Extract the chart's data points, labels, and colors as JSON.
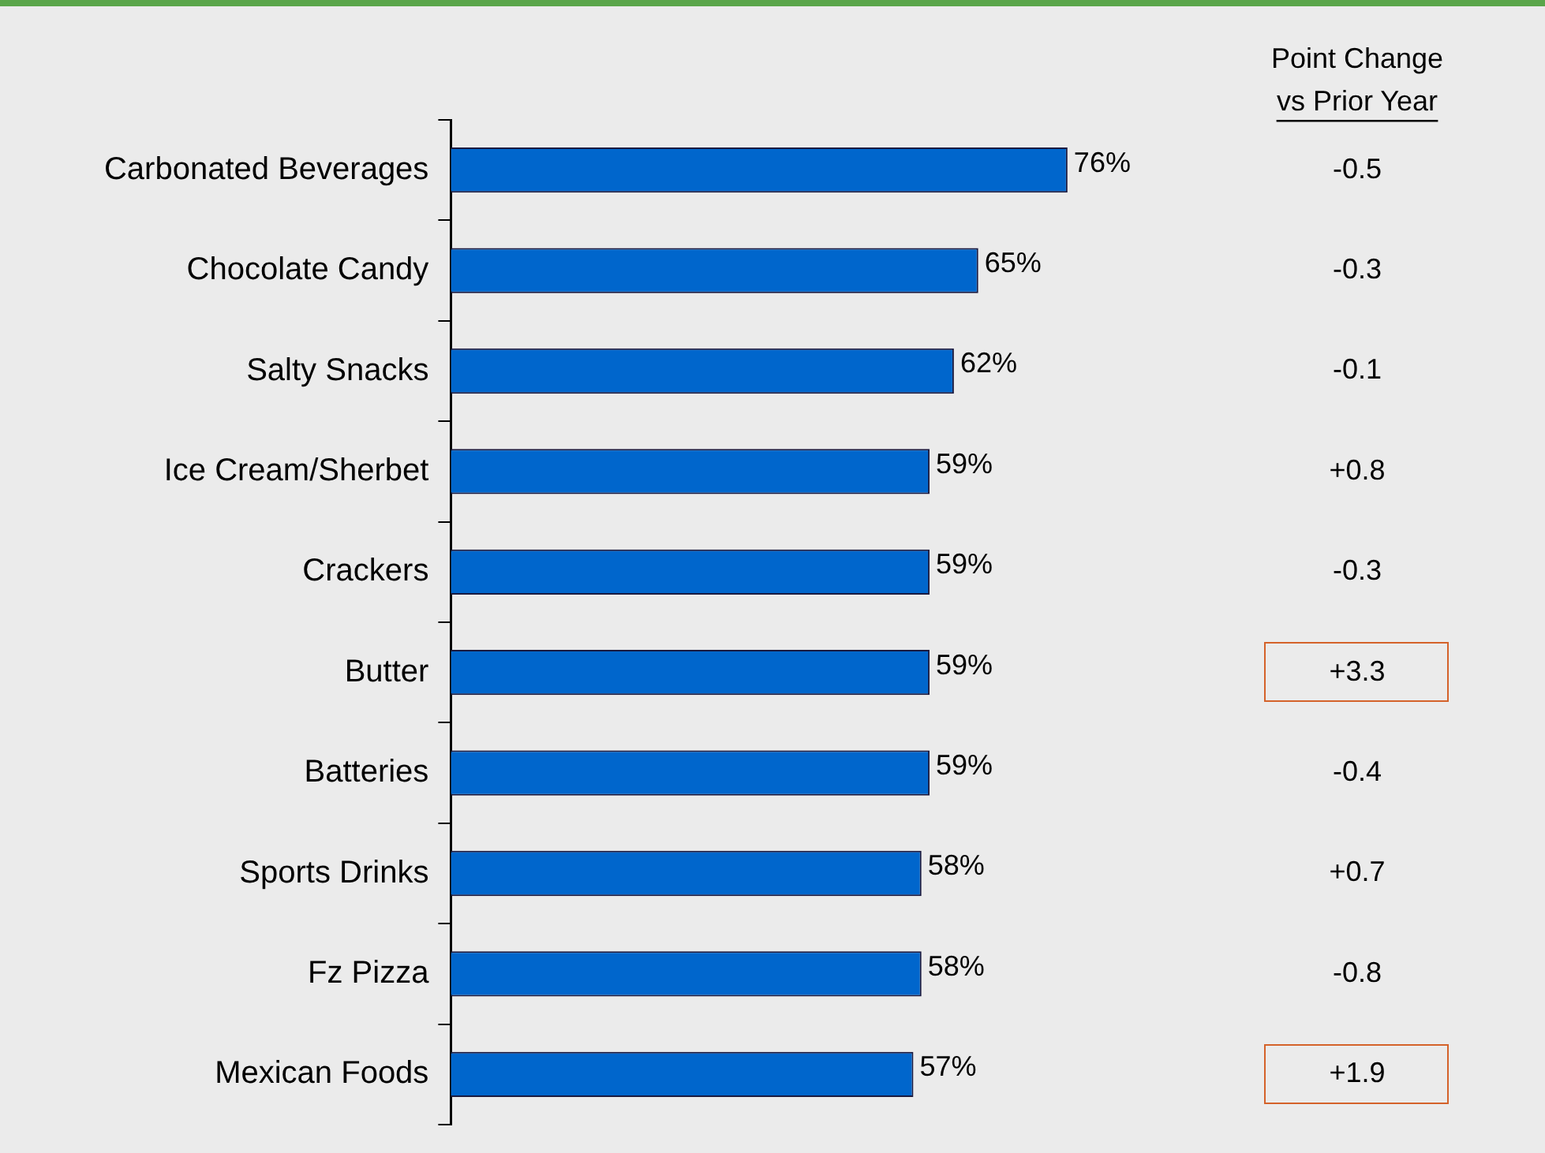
{
  "chart_data": {
    "type": "bar",
    "orientation": "horizontal",
    "categories": [
      "Carbonated Beverages",
      "Chocolate Candy",
      "Salty Snacks",
      "Ice Cream/Sherbet",
      "Crackers",
      "Butter",
      "Batteries",
      "Sports Drinks",
      "Fz Pizza",
      "Mexican Foods"
    ],
    "values": [
      76,
      65,
      62,
      59,
      59,
      59,
      59,
      58,
      58,
      57
    ],
    "value_labels": [
      "76%",
      "65%",
      "62%",
      "59%",
      "59%",
      "59%",
      "59%",
      "58%",
      "58%",
      "57%"
    ],
    "color": "#0066cc",
    "grid": false,
    "legend": false,
    "annotations": [
      "Point Change",
      "vs Prior Year",
      "-0.5",
      "-0.3",
      "-0.1",
      "+0.8",
      "-0.3",
      "+3.3",
      "-0.4",
      "+0.7",
      "-0.8",
      "+1.9"
    ]
  }
}
